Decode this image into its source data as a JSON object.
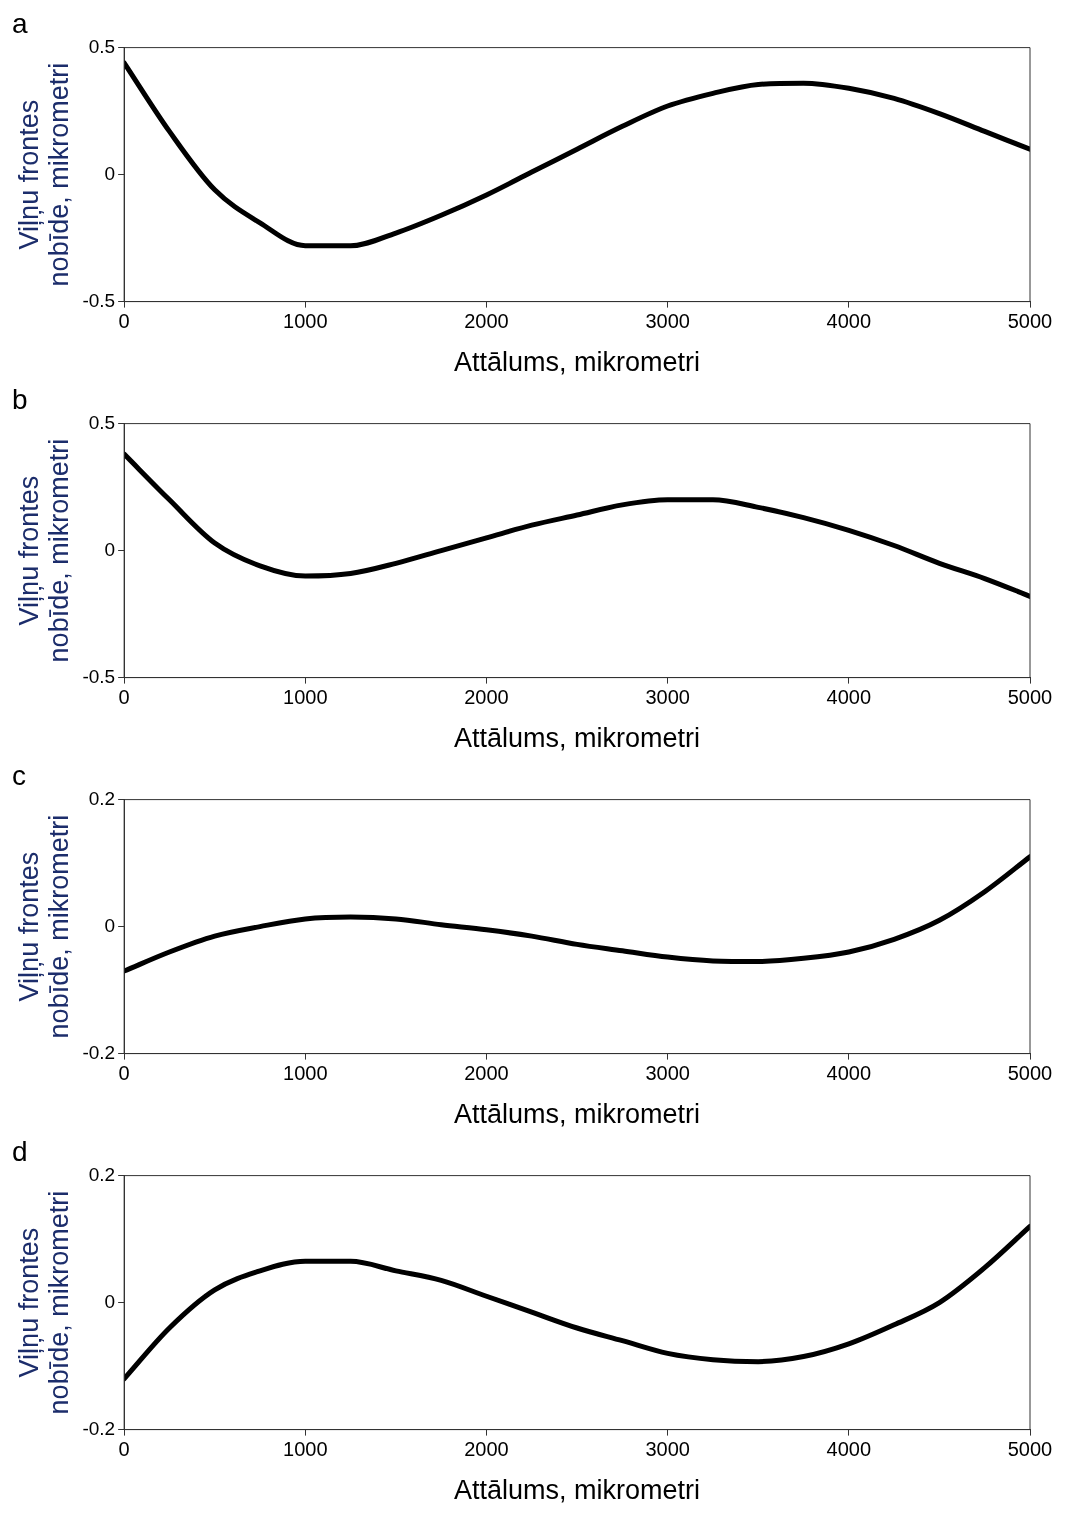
{
  "chart_data": [
    {
      "type": "line",
      "title": "a",
      "xlabel": "Attālums, mikrometri",
      "ylabel": "Viļņu frontes\nnobīde, mikrometri",
      "x": [
        0,
        250,
        500,
        750,
        1000,
        1250,
        1500,
        1750,
        2000,
        2250,
        2500,
        2750,
        3000,
        3250,
        3500,
        3750,
        4000,
        4250,
        4500,
        4750,
        5000
      ],
      "series": [
        {
          "color": "#000000",
          "values": [
            0.44,
            0.17,
            -0.06,
            -0.19,
            -0.28,
            -0.28,
            -0.23,
            -0.16,
            -0.08,
            0.01,
            0.1,
            0.19,
            0.27,
            0.32,
            0.355,
            0.36,
            0.34,
            0.3,
            0.24,
            0.17,
            0.1
          ]
        }
      ],
      "xlim": [
        0,
        5000
      ],
      "xticks": [
        0,
        1000,
        2000,
        3000,
        4000,
        5000
      ],
      "ylim": [
        -0.5,
        0.5
      ],
      "yticks": [
        -0.5,
        0,
        0.5
      ],
      "grid": false,
      "legend": false,
      "marker": "none",
      "line_style": "solid"
    },
    {
      "type": "line",
      "title": "b",
      "xlabel": "Attālums, mikrometri",
      "ylabel": "Viļņu frontes\nnobīde, mikrometri",
      "x": [
        0,
        250,
        500,
        750,
        1000,
        1250,
        1500,
        1750,
        2000,
        2250,
        2500,
        2750,
        3000,
        3250,
        3500,
        3750,
        4000,
        4250,
        4500,
        4750,
        5000
      ],
      "series": [
        {
          "color": "#000000",
          "values": [
            0.38,
            0.2,
            0.03,
            -0.06,
            -0.1,
            -0.09,
            -0.05,
            0.0,
            0.05,
            0.1,
            0.14,
            0.18,
            0.2,
            0.2,
            0.17,
            0.13,
            0.08,
            0.02,
            -0.05,
            -0.11,
            -0.18
          ]
        }
      ],
      "xlim": [
        0,
        5000
      ],
      "xticks": [
        0,
        1000,
        2000,
        3000,
        4000,
        5000
      ],
      "ylim": [
        -0.5,
        0.5
      ],
      "yticks": [
        -0.5,
        0,
        0.5
      ],
      "grid": false,
      "legend": false,
      "marker": "none",
      "line_style": "solid"
    },
    {
      "type": "line",
      "title": "c",
      "xlabel": "Attālums, mikrometri",
      "ylabel": "Viļņu frontes\nnobīde, mikrometri",
      "x": [
        0,
        250,
        500,
        750,
        1000,
        1250,
        1500,
        1750,
        2000,
        2250,
        2500,
        2750,
        3000,
        3250,
        3500,
        3750,
        4000,
        4250,
        4500,
        4750,
        5000
      ],
      "series": [
        {
          "color": "#000000",
          "values": [
            -0.07,
            -0.04,
            -0.015,
            0.0,
            0.012,
            0.015,
            0.012,
            0.003,
            -0.005,
            -0.015,
            -0.028,
            -0.038,
            -0.048,
            -0.054,
            -0.055,
            -0.05,
            -0.04,
            -0.02,
            0.01,
            0.055,
            0.11
          ]
        }
      ],
      "xlim": [
        0,
        5000
      ],
      "xticks": [
        0,
        1000,
        2000,
        3000,
        4000,
        5000
      ],
      "ylim": [
        -0.2,
        0.2
      ],
      "yticks": [
        -0.2,
        0,
        0.2
      ],
      "grid": false,
      "legend": false,
      "marker": "none",
      "line_style": "solid"
    },
    {
      "type": "line",
      "title": "d",
      "xlabel": "Attālums, mikrometri",
      "ylabel": "Viļņu frontes\nnobīde, mikrometri",
      "x": [
        0,
        250,
        500,
        750,
        1000,
        1250,
        1500,
        1750,
        2000,
        2250,
        2500,
        2750,
        3000,
        3250,
        3500,
        3750,
        4000,
        4250,
        4500,
        4750,
        5000
      ],
      "series": [
        {
          "color": "#000000",
          "values": [
            -0.12,
            -0.04,
            0.02,
            0.05,
            0.065,
            0.065,
            0.05,
            0.035,
            0.01,
            -0.015,
            -0.04,
            -0.06,
            -0.08,
            -0.09,
            -0.093,
            -0.085,
            -0.065,
            -0.035,
            0.0,
            0.055,
            0.12
          ]
        }
      ],
      "xlim": [
        0,
        5000
      ],
      "xticks": [
        0,
        1000,
        2000,
        3000,
        4000,
        5000
      ],
      "ylim": [
        -0.2,
        0.2
      ],
      "yticks": [
        -0.2,
        0,
        0.2
      ],
      "grid": false,
      "legend": false,
      "marker": "none",
      "line_style": "solid"
    }
  ]
}
